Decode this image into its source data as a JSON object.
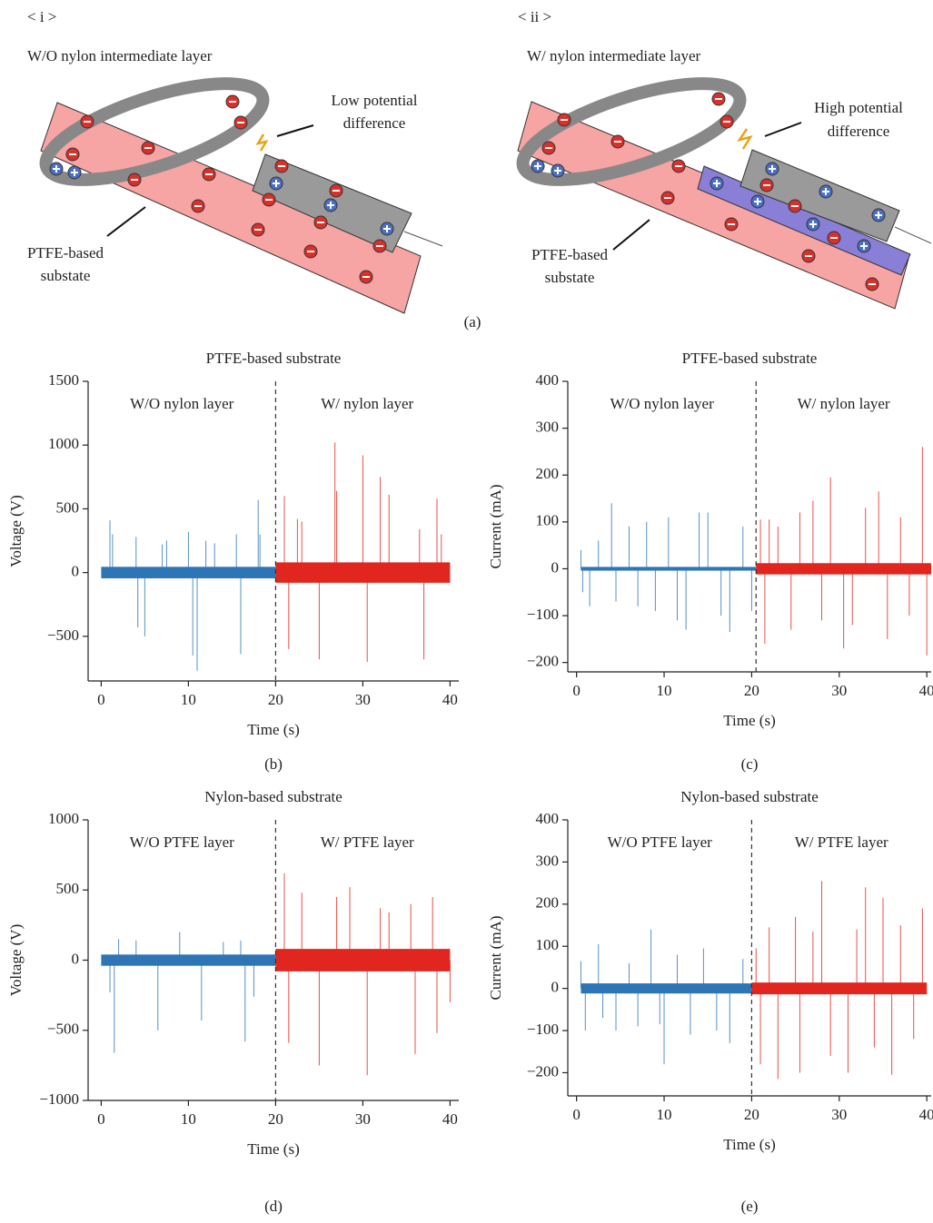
{
  "diagram": {
    "panel_label": "(a)",
    "left": {
      "index": "< i >",
      "title": "W/O nylon intermediate layer",
      "callout": [
        "Low potential",
        "difference"
      ],
      "substrate": [
        "PTFE-based",
        "substate"
      ]
    },
    "right": {
      "index": "< ii >",
      "title": "W/ nylon intermediate layer",
      "callout": [
        "High potential",
        "difference"
      ],
      "substrate": [
        "PTFE-based",
        "substate"
      ]
    }
  },
  "chart_data": [
    {
      "type": "spike",
      "title": "PTFE-based substrate",
      "xlabel": "Time (s)",
      "ylabel": "Voltage (V)",
      "panel_label": "(b)",
      "xlim": [
        -1.5,
        41
      ],
      "ylim": [
        -850,
        1500
      ],
      "xticks": [
        0,
        10,
        20,
        30,
        40
      ],
      "yticks": [
        {
          "value": -500,
          "label": "−500"
        },
        0,
        500,
        1000,
        1500
      ],
      "divider_x": 20,
      "regions": [
        "W/O nylon layer",
        "W/ nylon layer"
      ],
      "series": [
        {
          "color": "#2e75b6",
          "span": [
            0,
            20
          ],
          "noise": 45,
          "x": [
            1,
            1.3,
            4,
            4.2,
            5,
            7,
            7.5,
            10,
            10.5,
            11,
            12,
            13,
            15.5,
            16,
            18,
            18.2
          ],
          "values": [
            410,
            300,
            280,
            -430,
            -500,
            220,
            250,
            320,
            -650,
            -770,
            250,
            230,
            300,
            -640,
            570,
            300
          ]
        },
        {
          "color": "#e0261f",
          "span": [
            20,
            40
          ],
          "noise": 80,
          "x": [
            21,
            21.5,
            22.5,
            23,
            25,
            26.8,
            27,
            30,
            30.5,
            32,
            33,
            36.5,
            37,
            38.5,
            39
          ],
          "values": [
            600,
            -600,
            420,
            400,
            -680,
            1020,
            640,
            920,
            -700,
            750,
            610,
            340,
            -680,
            580,
            300
          ]
        }
      ]
    },
    {
      "type": "spike",
      "title": "PTFE-based substrate",
      "xlabel": "Time (s)",
      "ylabel": "Current (mA)",
      "panel_label": "(c)",
      "xlim": [
        -1,
        40.5
      ],
      "ylim": [
        -220,
        400
      ],
      "xticks": [
        0,
        10,
        20,
        30,
        40
      ],
      "yticks": [
        {
          "value": -200,
          "label": "−200"
        },
        {
          "value": -100,
          "label": "−100"
        },
        0,
        100,
        200,
        300,
        400
      ],
      "divider_x": 20.5,
      "regions": [
        "W/O nylon layer",
        "W/ nylon layer"
      ],
      "series": [
        {
          "color": "#2e75b6",
          "span": [
            0.5,
            20.5
          ],
          "noise": 4,
          "x": [
            0.5,
            0.7,
            1.5,
            2.5,
            4,
            4.5,
            6,
            7,
            8,
            9,
            10.5,
            11.5,
            12.5,
            14,
            15,
            16.5,
            17.5,
            19,
            20
          ],
          "values": [
            40,
            -50,
            -80,
            60,
            140,
            -70,
            90,
            -80,
            100,
            -90,
            110,
            -110,
            -130,
            120,
            120,
            -100,
            -135,
            90,
            -90
          ]
        },
        {
          "color": "#e0261f",
          "span": [
            20.5,
            40.5
          ],
          "noise": 12,
          "x": [
            21,
            21.5,
            22,
            23,
            24.5,
            25.5,
            27,
            28,
            29,
            30.5,
            31.5,
            33,
            34.5,
            35.5,
            37,
            38,
            39.5,
            40
          ],
          "values": [
            105,
            -160,
            105,
            90,
            -130,
            120,
            145,
            -110,
            195,
            -170,
            -120,
            130,
            165,
            -150,
            110,
            -100,
            260,
            -185
          ]
        }
      ]
    },
    {
      "type": "spike",
      "title": "Nylon-based substrate",
      "xlabel": "Time (s)",
      "ylabel": "Voltage (V)",
      "panel_label": "(d)",
      "xlim": [
        -1.5,
        41
      ],
      "ylim": [
        -1000,
        1000
      ],
      "xticks": [
        0,
        10,
        20,
        30,
        40
      ],
      "yticks": [
        {
          "value": -1000,
          "label": "−1000"
        },
        {
          "value": -500,
          "label": "−500"
        },
        0,
        500,
        1000
      ],
      "divider_x": 20,
      "regions": [
        "W/O PTFE layer",
        "W/ PTFE layer"
      ],
      "series": [
        {
          "color": "#2e75b6",
          "span": [
            0,
            20
          ],
          "noise": 40,
          "x": [
            1,
            1.5,
            2,
            4,
            6.5,
            9,
            11.5,
            14,
            16,
            16.5,
            17.5
          ],
          "values": [
            -230,
            -660,
            150,
            140,
            -500,
            200,
            -430,
            130,
            140,
            -580,
            -260
          ]
        },
        {
          "color": "#e0261f",
          "span": [
            20,
            40
          ],
          "noise": 80,
          "x": [
            21,
            21.5,
            23,
            25,
            27,
            28.5,
            30.5,
            32,
            33,
            35.5,
            36,
            38,
            38.5,
            40
          ],
          "values": [
            620,
            -590,
            480,
            -750,
            450,
            520,
            -820,
            370,
            340,
            400,
            -670,
            450,
            -520,
            -300
          ]
        }
      ]
    },
    {
      "type": "spike",
      "title": "Nylon-based substrate",
      "xlabel": "Time (s)",
      "ylabel": "Current (mA)",
      "panel_label": "(e)",
      "xlim": [
        -1,
        40.5
      ],
      "ylim": [
        -255,
        400
      ],
      "xticks": [
        0,
        10,
        20,
        30,
        40
      ],
      "yticks": [
        {
          "value": -200,
          "label": "−200"
        },
        {
          "value": -100,
          "label": "−100"
        },
        0,
        100,
        200,
        300,
        400
      ],
      "divider_x": 20,
      "regions": [
        "W/O PTFE layer",
        "W/ PTFE layer"
      ],
      "series": [
        {
          "color": "#2e75b6",
          "span": [
            0.5,
            20
          ],
          "noise": 12,
          "x": [
            0.5,
            1,
            2.5,
            3,
            4.5,
            6,
            7,
            8.5,
            9.5,
            10,
            11.5,
            13,
            14.5,
            16,
            17.5,
            19
          ],
          "values": [
            65,
            -100,
            105,
            -70,
            -100,
            60,
            -90,
            140,
            -85,
            -180,
            80,
            -110,
            95,
            -100,
            -130,
            70
          ]
        },
        {
          "color": "#e0261f",
          "span": [
            20,
            40
          ],
          "noise": 14,
          "x": [
            20.5,
            21,
            22,
            23,
            25,
            25.5,
            27,
            28,
            29,
            31,
            32,
            33,
            34,
            35,
            36,
            37,
            38.5,
            39.5
          ],
          "values": [
            95,
            -180,
            145,
            -215,
            170,
            -200,
            135,
            255,
            -160,
            -200,
            140,
            240,
            -140,
            215,
            -205,
            150,
            -120,
            190
          ]
        }
      ]
    }
  ]
}
